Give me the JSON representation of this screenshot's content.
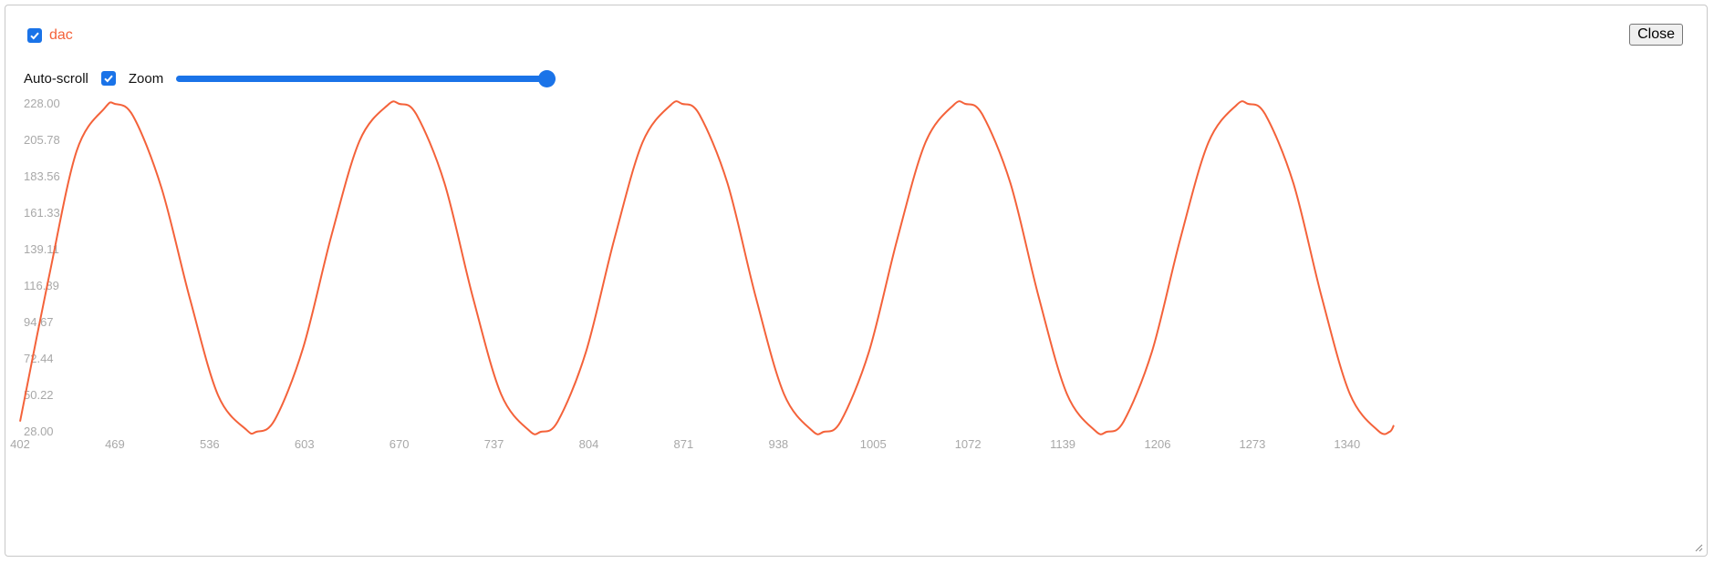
{
  "legend": {
    "label": "dac",
    "checked": true
  },
  "close_label": "Close",
  "controls": {
    "autoscroll_label": "Auto-scroll",
    "autoscroll_checked": true,
    "zoom_label": "Zoom",
    "zoom_value": 1.0
  },
  "colors": {
    "series": "#f4623a",
    "accent": "#1a73e8"
  },
  "chart_data": {
    "type": "line",
    "title": "",
    "xlabel": "",
    "ylabel": "",
    "xlim": [
      402,
      1373
    ],
    "ylim": [
      28.0,
      228.0
    ],
    "x_ticks": [
      "402",
      "469",
      "536",
      "603",
      "670",
      "737",
      "804",
      "871",
      "938",
      "1005",
      "1072",
      "1139",
      "1206",
      "1273",
      "1340"
    ],
    "y_ticks": [
      "228.00",
      "205.78",
      "183.56",
      "161.33",
      "139.11",
      "116.89",
      "94.67",
      "72.44",
      "50.22",
      "28.00"
    ],
    "grid": false,
    "series": [
      {
        "name": "dac",
        "x": [
          402,
          422,
          442,
          462,
          469,
          482,
          502,
          522,
          542,
          562,
          569,
          582,
          602,
          622,
          642,
          662,
          670,
          682,
          702,
          722,
          742,
          762,
          770,
          782,
          802,
          822,
          842,
          862,
          870,
          882,
          902,
          922,
          942,
          962,
          970,
          982,
          1002,
          1022,
          1042,
          1062,
          1070,
          1082,
          1102,
          1122,
          1142,
          1162,
          1170,
          1182,
          1202,
          1222,
          1242,
          1262,
          1270,
          1282,
          1302,
          1322,
          1342,
          1362,
          1370,
          1373
        ],
        "y": [
          34.3,
          120.7,
          199.2,
          225.6,
          228.0,
          220.4,
          176.6,
          109.4,
          50.2,
          29.2,
          28.0,
          35.3,
          79.0,
          147.4,
          205.5,
          227.4,
          228.0,
          221.7,
          179.6,
          110.2,
          51.0,
          28.6,
          28.0,
          34.3,
          76.8,
          145.4,
          204.5,
          227.4,
          228.0,
          221.7,
          179.6,
          110.2,
          51.0,
          28.6,
          28.0,
          34.3,
          76.8,
          145.4,
          204.5,
          227.4,
          228.0,
          221.7,
          179.6,
          110.2,
          51.0,
          28.6,
          28.0,
          34.3,
          76.8,
          145.4,
          204.5,
          227.4,
          228.0,
          221.7,
          179.6,
          110.2,
          51.0,
          28.6,
          28.0,
          32.0
        ]
      }
    ]
  }
}
